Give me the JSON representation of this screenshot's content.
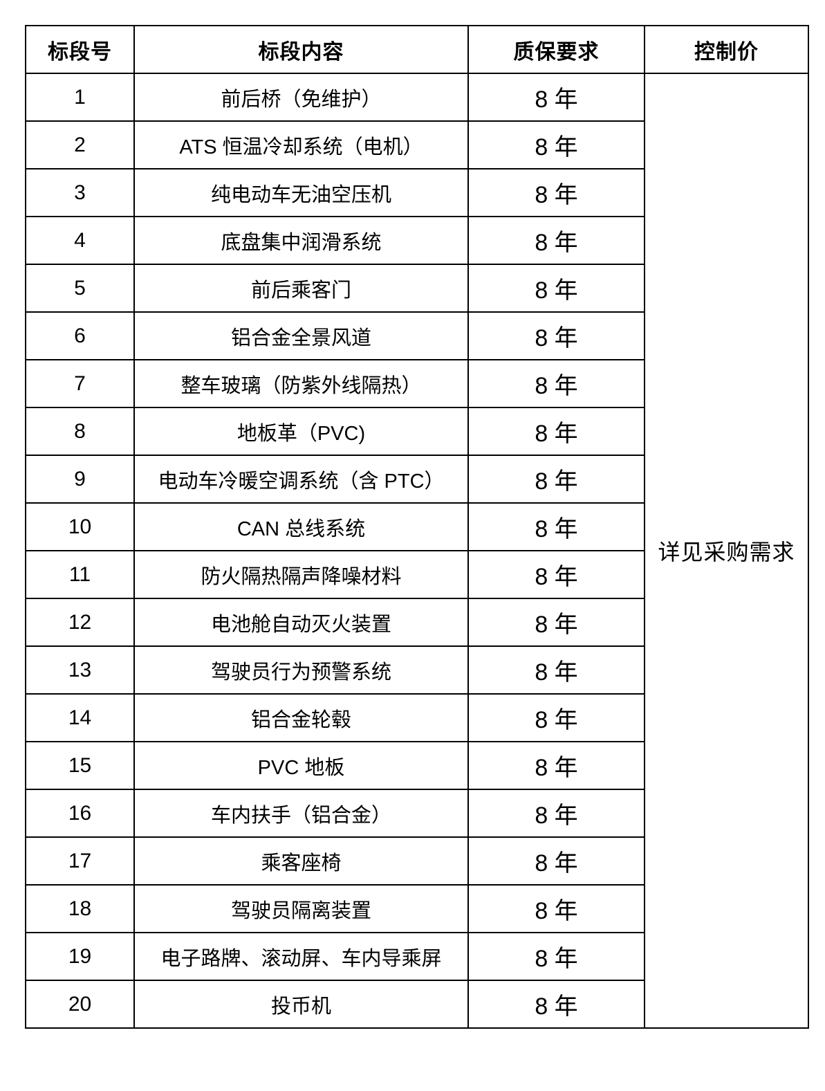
{
  "page": {
    "background_color": "#ffffff",
    "text_color": "#000000",
    "border_color": "#000000"
  },
  "table": {
    "headers": [
      "标段号",
      "标段内容",
      "质保要求",
      "控制价"
    ],
    "control_price_note": "详见采购需求",
    "rows": [
      {
        "id": "1",
        "content": "前后桥（免维护）",
        "warranty": "8 年"
      },
      {
        "id": "2",
        "content": "ATS 恒温冷却系统（电机）",
        "warranty": "8 年"
      },
      {
        "id": "3",
        "content": "纯电动车无油空压机",
        "warranty": "8 年"
      },
      {
        "id": "4",
        "content": "底盘集中润滑系统",
        "warranty": "8 年"
      },
      {
        "id": "5",
        "content": "前后乘客门",
        "warranty": "8 年"
      },
      {
        "id": "6",
        "content": "铝合金全景风道",
        "warranty": "8 年"
      },
      {
        "id": "7",
        "content": "整车玻璃（防紫外线隔热）",
        "warranty": "8 年"
      },
      {
        "id": "8",
        "content": "地板革（PVC)",
        "warranty": "8 年"
      },
      {
        "id": "9",
        "content": "电动车冷暖空调系统（含 PTC）",
        "warranty": "8 年"
      },
      {
        "id": "10",
        "content": "CAN 总线系统",
        "warranty": "8 年"
      },
      {
        "id": "11",
        "content": "防火隔热隔声降噪材料",
        "warranty": "8 年"
      },
      {
        "id": "12",
        "content": "电池舱自动灭火装置",
        "warranty": "8 年"
      },
      {
        "id": "13",
        "content": "驾驶员行为预警系统",
        "warranty": "8 年"
      },
      {
        "id": "14",
        "content": "铝合金轮毂",
        "warranty": "8 年"
      },
      {
        "id": "15",
        "content": "PVC 地板",
        "warranty": "8 年"
      },
      {
        "id": "16",
        "content": "车内扶手（铝合金）",
        "warranty": "8 年"
      },
      {
        "id": "17",
        "content": "乘客座椅",
        "warranty": "8 年"
      },
      {
        "id": "18",
        "content": "驾驶员隔离装置",
        "warranty": "8 年"
      },
      {
        "id": "19",
        "content": "电子路牌、滚动屏、车内导乘屏",
        "warranty": "8 年"
      },
      {
        "id": "20",
        "content": "投币机",
        "warranty": "8 年"
      }
    ]
  }
}
